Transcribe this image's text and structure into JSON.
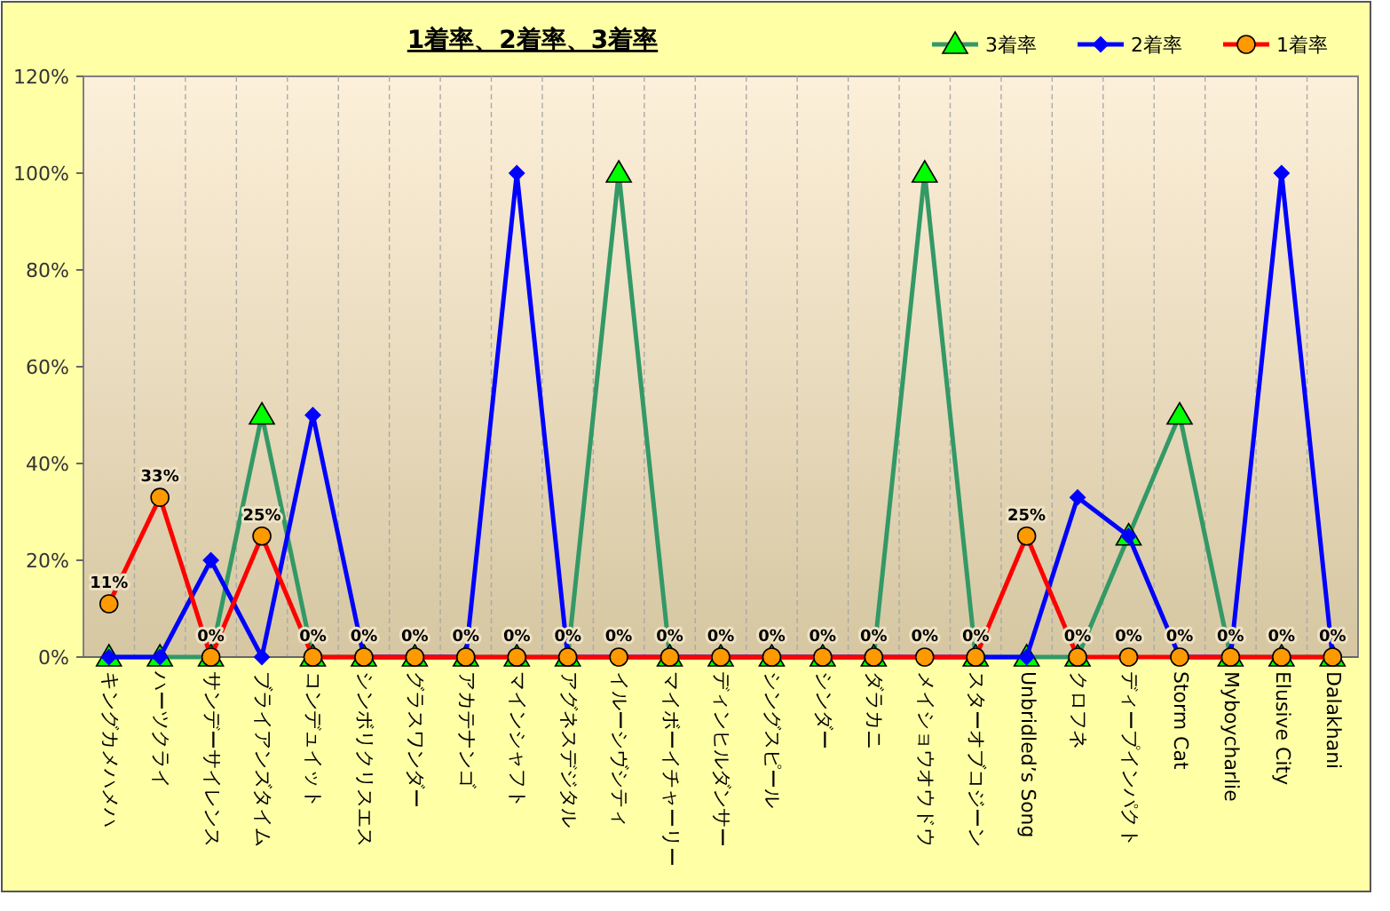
{
  "chart_data": {
    "type": "line",
    "title": "1着率、2着率、3着率",
    "categories": [
      "キングカメハメハ",
      "ハーツクライ",
      "サンデーサイレンス",
      "ブライアンズタイム",
      "コンデュイット",
      "シンボリクリスエス",
      "グラスワンダー",
      "アカテナンゴ",
      "マインシャフト",
      "アグネスデジタル",
      "イルーシヴシティ",
      "マイボーイチャーリー",
      "ディンヒルダンサー",
      "シングスピール",
      "シンダー",
      "ダラカニ",
      "メイショウオウドウ",
      "スターオブコジーン",
      "Unbridled’s Song",
      "クロフネ",
      "ディープインパクト",
      "Storm Cat",
      "Myboycharlie",
      "Elusive City",
      "Dalakhani"
    ],
    "series": [
      {
        "name": "3着率",
        "color": "#339966",
        "marker": "triangle",
        "values": [
          0,
          0,
          0,
          50,
          0,
          0,
          0,
          0,
          0,
          0,
          100,
          0,
          0,
          0,
          0,
          0,
          100,
          0,
          0,
          0,
          25,
          50,
          0,
          0,
          0
        ]
      },
      {
        "name": "2着率",
        "color": "#0000ff",
        "marker": "diamond",
        "values": [
          0,
          0,
          20,
          0,
          50,
          0,
          0,
          0,
          100,
          0,
          0,
          0,
          0,
          0,
          0,
          0,
          0,
          0,
          0,
          33,
          25,
          0,
          0,
          100,
          0
        ]
      },
      {
        "name": "1着率",
        "color": "#ff0000",
        "marker": "circle",
        "values": [
          11,
          33,
          0,
          25,
          0,
          0,
          0,
          0,
          0,
          0,
          0,
          0,
          0,
          0,
          0,
          0,
          0,
          0,
          25,
          0,
          0,
          0,
          0,
          0,
          0
        ],
        "value_labels": [
          "11%",
          "33%",
          "0%",
          "25%",
          "0%",
          "0%",
          "0%",
          "0%",
          "0%",
          "0%",
          "0%",
          "0%",
          "0%",
          "0%",
          "0%",
          "0%",
          "0%",
          "0%",
          "25%",
          "0%",
          "0%",
          "0%",
          "0%",
          "0%",
          "0%"
        ]
      }
    ],
    "ylim": [
      0,
      120
    ],
    "yticks": [
      {
        "value": 0,
        "label": "0%"
      },
      {
        "value": 20,
        "label": "20%"
      },
      {
        "value": 40,
        "label": "40%"
      },
      {
        "value": 60,
        "label": "60%"
      },
      {
        "value": 80,
        "label": "80%"
      },
      {
        "value": 100,
        "label": "100%"
      },
      {
        "value": 120,
        "label": "120%"
      }
    ],
    "grid": "x",
    "legend": "top right",
    "line_style": "solid"
  }
}
